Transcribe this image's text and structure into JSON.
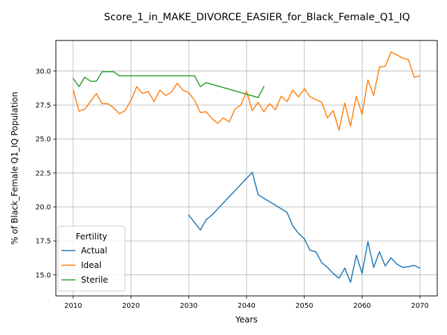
{
  "chart_data": {
    "type": "line",
    "title": "Score_1_in_MAKE_DIVORCE_EASIER_for_Black_Female_Q1_IQ",
    "xlabel": "Years",
    "ylabel": "% of Black_Female Q1_IQ Population",
    "xlim": [
      2007,
      2073
    ],
    "ylim": [
      13.45,
      32.25
    ],
    "xticks": [
      2010,
      2020,
      2030,
      2040,
      2050,
      2060,
      2070
    ],
    "yticks": [
      15.0,
      17.5,
      20.0,
      22.5,
      25.0,
      27.5,
      30.0
    ],
    "xtick_labels": [
      "2010",
      "2020",
      "2030",
      "2040",
      "2050",
      "2060",
      "2070"
    ],
    "ytick_labels": [
      "15.0",
      "17.5",
      "20.0",
      "22.5",
      "25.0",
      "27.5",
      "30.0"
    ],
    "grid": true,
    "legend": {
      "title": "Fertility",
      "position": "lower-left"
    },
    "series": [
      {
        "name": "Actual",
        "color": "#1f77b4",
        "x": [
          2030,
          2031,
          2032,
          2033,
          2034,
          2041,
          2042,
          2047,
          2048,
          2049,
          2050,
          2051,
          2052,
          2053,
          2054,
          2055,
          2056,
          2057,
          2058,
          2059,
          2060,
          2061,
          2062,
          2063,
          2064,
          2065,
          2066,
          2067,
          2068,
          2069,
          2070
        ],
        "y": [
          19.4,
          18.85,
          18.3,
          19.05,
          19.4,
          22.55,
          20.9,
          19.6,
          18.6,
          18.05,
          17.65,
          16.8,
          16.7,
          15.9,
          15.55,
          15.1,
          14.75,
          15.5,
          14.45,
          16.45,
          15.1,
          17.45,
          15.55,
          16.7,
          15.65,
          16.25,
          15.8,
          15.55,
          15.6,
          15.7,
          15.5
        ]
      },
      {
        "name": "Ideal",
        "color": "#ff7f0e",
        "x": [
          2010,
          2011,
          2012,
          2013,
          2014,
          2015,
          2016,
          2017,
          2018,
          2019,
          2020,
          2021,
          2022,
          2023,
          2024,
          2025,
          2026,
          2027,
          2028,
          2029,
          2030,
          2031,
          2032,
          2033,
          2034,
          2035,
          2036,
          2037,
          2038,
          2039,
          2040,
          2041,
          2042,
          2043,
          2044,
          2045,
          2046,
          2047,
          2048,
          2049,
          2050,
          2051,
          2052,
          2053,
          2054,
          2055,
          2056,
          2057,
          2058,
          2059,
          2060,
          2061,
          2062,
          2063,
          2064,
          2065,
          2066,
          2067,
          2068,
          2069,
          2070
        ],
        "y": [
          28.6,
          27.05,
          27.2,
          27.75,
          28.35,
          27.6,
          27.6,
          27.3,
          26.85,
          27.1,
          27.85,
          28.85,
          28.35,
          28.5,
          27.75,
          28.6,
          28.2,
          28.45,
          29.1,
          28.6,
          28.4,
          27.85,
          26.95,
          27.0,
          26.5,
          26.15,
          26.55,
          26.25,
          27.2,
          27.5,
          28.5,
          27.1,
          27.7,
          27.0,
          27.6,
          27.15,
          28.15,
          27.75,
          28.6,
          28.1,
          28.7,
          28.1,
          27.9,
          27.7,
          26.55,
          27.1,
          25.65,
          27.65,
          25.95,
          28.15,
          26.8,
          29.35,
          28.2,
          30.3,
          30.35,
          31.4,
          31.2,
          30.95,
          30.85,
          29.55,
          29.65
        ]
      },
      {
        "name": "Sterile",
        "color": "#2ca02c",
        "x": [
          2010,
          2011,
          2012,
          2013,
          2014,
          2015,
          2016,
          2017,
          2018,
          2019,
          2031,
          2032,
          2033,
          2042,
          2043
        ],
        "y": [
          29.45,
          28.85,
          29.55,
          29.25,
          29.25,
          29.95,
          29.95,
          29.95,
          29.65,
          29.65,
          29.65,
          28.85,
          29.15,
          28.05,
          28.85
        ]
      }
    ]
  }
}
